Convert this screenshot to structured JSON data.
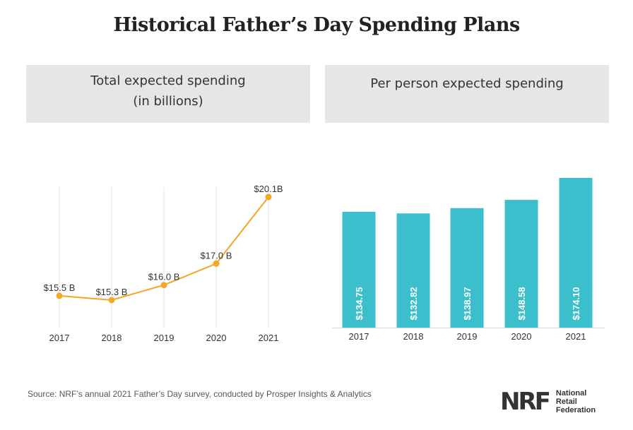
{
  "title": "Historical Father’s Day Spending Plans",
  "left_panel": {
    "line1": "Total expected spending",
    "line2": "(in billions)"
  },
  "right_panel": {
    "line1": "Per person expected spending"
  },
  "source": "Source: NRF’s annual 2021 Father’s Day survey, conducted by Prosper Insights & Analytics",
  "logo": {
    "mark": "NRF",
    "line1": "National",
    "line2": "Retail",
    "line3": "Federation"
  },
  "colors": {
    "line": "#f5a623",
    "bar": "#3bbfcc",
    "panel": "#e6e6e6"
  },
  "chart_data": [
    {
      "type": "line",
      "title": "Total expected spending (in billions)",
      "x": [
        "2017",
        "2018",
        "2019",
        "2020",
        "2021"
      ],
      "values": [
        15.5,
        15.3,
        16.0,
        17.0,
        20.1
      ],
      "labels": [
        "$15.5 B",
        "$15.3 B",
        "$16.0 B",
        "$17.0 B",
        "$20.1B"
      ],
      "grid": "vertical"
    },
    {
      "type": "bar",
      "title": "Per person expected spending",
      "categories": [
        "2017",
        "2018",
        "2019",
        "2020",
        "2021"
      ],
      "values": [
        134.75,
        132.82,
        138.97,
        148.58,
        174.1
      ],
      "labels": [
        "$134.75",
        "$132.82",
        "$138.97",
        "$148.58",
        "$174.10"
      ]
    }
  ]
}
